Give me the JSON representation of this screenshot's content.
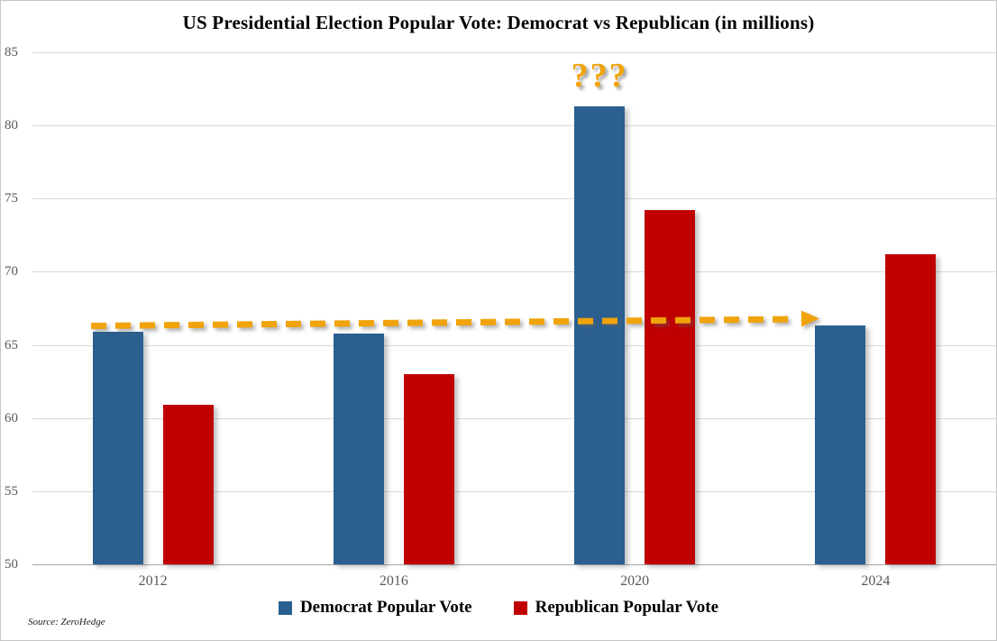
{
  "title": "US Presidential Election Popular Vote: Democrat vs Republican (in millions)",
  "source": "Source: ZeroHedge",
  "colors": {
    "democrat": "#2A5F8F",
    "republican": "#C00000",
    "accent_orange": "#F0A30A",
    "gridline": "#D9D9D9",
    "axis_text": "#595959"
  },
  "legend": [
    {
      "label": "Democrat Popular Vote",
      "color": "#2A5F8F"
    },
    {
      "label": "Republican Popular Vote",
      "color": "#C00000"
    }
  ],
  "annotation": {
    "question_marks": "???"
  },
  "chart_data": {
    "type": "bar",
    "title": "US Presidential Election Popular Vote: Democrat vs Republican (in millions)",
    "categories": [
      "2012",
      "2016",
      "2020",
      "2024"
    ],
    "series": [
      {
        "name": "Democrat Popular Vote",
        "color": "#2A5F8F",
        "values": [
          65.9,
          65.8,
          81.3,
          66.3
        ]
      },
      {
        "name": "Republican Popular Vote",
        "color": "#C00000",
        "values": [
          60.9,
          63.0,
          74.2,
          71.2
        ]
      }
    ],
    "xlabel": "",
    "ylabel": "",
    "ylim": [
      50,
      85
    ],
    "yticks": [
      50,
      55,
      60,
      65,
      70,
      75,
      80,
      85
    ],
    "grid": true,
    "legend_position": "bottom",
    "annotations": [
      {
        "type": "text",
        "text": "???",
        "target_category": "2020",
        "target_series": "Democrat Popular Vote",
        "color": "#F0A30A"
      },
      {
        "type": "arrow",
        "style": "dashed",
        "color": "#F0A30A",
        "from_category": "2012",
        "to_category": "2024",
        "value": 66,
        "meaning": "Democrat popular vote flat across 2012, 2016 and 2024"
      }
    ]
  }
}
